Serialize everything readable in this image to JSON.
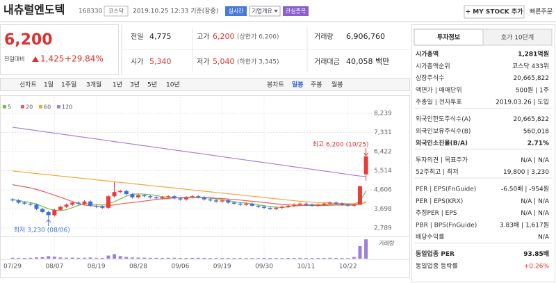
{
  "header": {
    "name": "내츄럴엔도텍",
    "code": "168330",
    "market": "코스닥",
    "timestamp": "2019.10.25 12:33 기준(장중)",
    "buttons": [
      "실시간",
      "기업개요",
      "관심종목"
    ],
    "my_stock": "+ MY STOCK 추가",
    "quick_order": "빠른주문"
  },
  "price": {
    "current": "6,200",
    "change_label": "전일대비",
    "change": "1,425",
    "change_pct": "+29.84%"
  },
  "summary": {
    "rows": [
      [
        {
          "label": "전일",
          "value": "4,775"
        },
        {
          "label": "고가",
          "value": "6,200",
          "note": "(상한가 6,200)"
        },
        {
          "label": "거래량",
          "value": "6,906,760"
        }
      ],
      [
        {
          "label": "시가",
          "value": "5,340"
        },
        {
          "label": "저가",
          "value": "5,040",
          "note": "(하한가 3,345)"
        },
        {
          "label": "거래대금",
          "value": "40,058 백만"
        }
      ]
    ]
  },
  "periods": {
    "line_label": "선차트",
    "line": [
      "1일",
      "1주일",
      "3개월",
      "1년",
      "3년",
      "5년",
      "10년"
    ],
    "candle_label": "봉차트",
    "candle": [
      "일봉",
      "주봉",
      "월봉"
    ]
  },
  "chart_data": {
    "type": "candlestick",
    "categories": [
      "07/29",
      null,
      null,
      null,
      null,
      null,
      null,
      "08/07",
      null,
      null,
      null,
      null,
      null,
      null,
      "08/19",
      null,
      null,
      null,
      null,
      null,
      null,
      "08/28",
      null,
      null,
      null,
      null,
      null,
      null,
      "09/06",
      null,
      null,
      null,
      null,
      null,
      null,
      "09/19",
      null,
      null,
      null,
      null,
      null,
      null,
      "09/30",
      null,
      null,
      null,
      null,
      null,
      null,
      "10/11",
      null,
      null,
      null,
      null,
      null,
      null,
      "10/22",
      null,
      null,
      null
    ],
    "open": [
      4150,
      4100,
      4000,
      3950,
      3900,
      3700,
      3550,
      3400,
      3650,
      3800,
      3900,
      4000,
      3950,
      4050,
      3850,
      3800,
      3750,
      4300,
      4500,
      4550,
      4400,
      4250,
      4350,
      4300,
      4250,
      4200,
      4250,
      4300,
      4200,
      4150,
      4250,
      4300,
      4250,
      4150,
      4100,
      4050,
      4100,
      4000,
      3950,
      3900,
      3950,
      3850,
      3800,
      3750,
      3700,
      3750,
      3800,
      3850,
      3900,
      3950,
      3900,
      3850,
      3900,
      3950,
      4000,
      3950,
      3900,
      3850,
      3900,
      5340
    ],
    "high": [
      4210,
      4160,
      4060,
      4010,
      3960,
      3760,
      3610,
      3710,
      3860,
      3960,
      4060,
      4060,
      4110,
      4110,
      3910,
      3860,
      4360,
      4970,
      4610,
      4610,
      4460,
      4410,
      4410,
      4360,
      4310,
      4310,
      4360,
      4360,
      4260,
      4310,
      4360,
      4360,
      4310,
      4210,
      4160,
      4160,
      4160,
      4060,
      4010,
      4010,
      4010,
      3910,
      3860,
      3810,
      3810,
      3860,
      3910,
      3960,
      4010,
      4010,
      3960,
      3960,
      4010,
      4060,
      4060,
      4010,
      3960,
      3960,
      4800,
      6200
    ],
    "low": [
      4040,
      3940,
      3890,
      3840,
      3640,
      3490,
      3230,
      3340,
      3590,
      3740,
      3840,
      3890,
      3890,
      3790,
      3740,
      3690,
      3690,
      4240,
      4440,
      4340,
      4190,
      4190,
      4240,
      4190,
      4140,
      4140,
      4190,
      4140,
      4090,
      4090,
      4190,
      4190,
      4090,
      4040,
      3990,
      3990,
      3940,
      3890,
      3840,
      3840,
      3790,
      3740,
      3690,
      3640,
      3640,
      3690,
      3740,
      3790,
      3840,
      3840,
      3790,
      3790,
      3840,
      3890,
      3890,
      3840,
      3790,
      3790,
      3880,
      5040
    ],
    "close": [
      4100,
      4000,
      3950,
      3900,
      3700,
      3550,
      3400,
      3650,
      3800,
      3900,
      4000,
      3950,
      4050,
      3850,
      3800,
      3750,
      4300,
      4500,
      4550,
      4400,
      4250,
      4350,
      4300,
      4250,
      4200,
      4250,
      4300,
      4200,
      4150,
      4250,
      4300,
      4250,
      4150,
      4100,
      4050,
      4100,
      4000,
      3950,
      3900,
      3950,
      3850,
      3800,
      3750,
      3700,
      3750,
      3800,
      3850,
      3900,
      3950,
      3900,
      3850,
      3900,
      3950,
      4000,
      3950,
      3900,
      3850,
      3900,
      4775,
      6200
    ],
    "series": [
      {
        "name": "5",
        "color": "#6cbf4a",
        "values": [
          4150,
          4100,
          4050,
          4000,
          3930,
          3820,
          3700,
          3640,
          3620,
          3660,
          3760,
          3860,
          3940,
          3930,
          3900,
          3880,
          3950,
          4040,
          4180,
          4300,
          4400,
          4410,
          4400,
          4370,
          4340,
          4270,
          4260,
          4240,
          4220,
          4220,
          4240,
          4230,
          4230,
          4210,
          4170,
          4130,
          4100,
          4040,
          4000,
          3970,
          3930,
          3890,
          3850,
          3810,
          3780,
          3770,
          3790,
          3820,
          3860,
          3880,
          3890,
          3890,
          3890,
          3910,
          3930,
          3920,
          3910,
          3900,
          4080,
          4540
        ]
      },
      {
        "name": "20",
        "color": "#ee5a5a",
        "values": [
          4850,
          4800,
          4750,
          4700,
          4620,
          4540,
          4450,
          4350,
          4250,
          4150,
          4050,
          3950,
          3880,
          3850,
          3830,
          3820,
          3850,
          3890,
          3930,
          3970,
          4000,
          4030,
          4070,
          4110,
          4150,
          4180,
          4200,
          4220,
          4230,
          4240,
          4250,
          4250,
          4240,
          4230,
          4210,
          4190,
          4170,
          4150,
          4120,
          4090,
          4060,
          4030,
          4000,
          3970,
          3940,
          3910,
          3890,
          3880,
          3870,
          3860,
          3860,
          3860,
          3860,
          3870,
          3880,
          3880,
          3880,
          3880,
          3920,
          4030
        ]
      },
      {
        "name": "60",
        "color": "#f5a53a",
        "values": [
          5500,
          5470,
          5440,
          5410,
          5380,
          5350,
          5320,
          5290,
          5260,
          5230,
          5200,
          5170,
          5140,
          5110,
          5080,
          5050,
          5020,
          4990,
          4960,
          4930,
          4900,
          4870,
          4840,
          4810,
          4780,
          4750,
          4720,
          4690,
          4660,
          4630,
          4600,
          4570,
          4540,
          4510,
          4480,
          4450,
          4420,
          4390,
          4360,
          4330,
          4300,
          4270,
          4240,
          4210,
          4180,
          4150,
          4120,
          4090,
          4060,
          4040,
          4020,
          4000,
          3990,
          3980,
          3970,
          3960,
          3950,
          3950,
          3960,
          3990
        ]
      },
      {
        "name": "120",
        "color": "#a57fe0",
        "values": [
          7580,
          7540,
          7500,
          7460,
          7420,
          7380,
          7340,
          7300,
          7260,
          7220,
          7180,
          7140,
          7100,
          7060,
          7020,
          6980,
          6940,
          6900,
          6860,
          6820,
          6780,
          6740,
          6700,
          6660,
          6620,
          6580,
          6540,
          6500,
          6460,
          6420,
          6380,
          6340,
          6300,
          6260,
          6220,
          6180,
          6140,
          6100,
          6060,
          6020,
          5980,
          5940,
          5900,
          5860,
          5820,
          5780,
          5740,
          5700,
          5660,
          5620,
          5580,
          5540,
          5500,
          5460,
          5420,
          5380,
          5340,
          5300,
          5260,
          5240
        ]
      }
    ],
    "volume": {
      "name": "거래량",
      "color": "#9d7fd8",
      "ylim": [
        0,
        7200000
      ],
      "values": [
        320000,
        280000,
        260000,
        300000,
        450000,
        520000,
        900000,
        700000,
        420000,
        350000,
        380000,
        300000,
        330000,
        410000,
        280000,
        260000,
        1100000,
        1600000,
        900000,
        600000,
        420000,
        380000,
        350000,
        300000,
        280000,
        260000,
        300000,
        320000,
        250000,
        240000,
        280000,
        300000,
        260000,
        230000,
        220000,
        250000,
        240000,
        220000,
        210000,
        230000,
        220000,
        200000,
        260000,
        240000,
        220000,
        230000,
        250000,
        260000,
        280000,
        240000,
        230000,
        250000,
        260000,
        300000,
        240000,
        230000,
        220000,
        600000,
        4500000,
        6906760
      ]
    },
    "ylim": [
      2490,
      8670
    ],
    "yticks": [
      {
        "value": 2789,
        "label": "2,789"
      },
      {
        "value": 3698,
        "label": "3,698"
      },
      {
        "value": 4606,
        "label": "4,606"
      },
      {
        "value": 5514,
        "label": "5,514"
      },
      {
        "value": 6422,
        "label": "6,422"
      },
      {
        "value": 7331,
        "label": "7,331"
      },
      {
        "value": 8239,
        "label": "8,239"
      }
    ],
    "grid": true,
    "up_color": "#ea3a3a",
    "down_color": "#3d6fd6",
    "annotations": {
      "high": "최고 6,200 (10/25)",
      "low": "최저 3,230 (08/06)"
    }
  },
  "right_panel": {
    "tabs": [
      "투자정보",
      "호가 10단계"
    ],
    "groups": [
      [
        {
          "label": "시가총액",
          "value": "1,281억원"
        },
        {
          "label": "시가총액순위",
          "value": "코스닥 433위"
        },
        {
          "label": "상장주식수",
          "value": "20,665,822"
        },
        {
          "label": "액면가 | 매매단위",
          "value": "500원 | 1주"
        },
        {
          "label": "주총일 | 전자투표",
          "value": "2019.03.26 | 도입"
        }
      ],
      [
        {
          "label": "외국인한도주식수(A)",
          "value": "20,665,822"
        },
        {
          "label": "외국인보유주식수(B)",
          "value": "560,018"
        },
        {
          "label": "외국인소진율(B/A)",
          "value": "2.71%"
        }
      ],
      [
        {
          "label": "투자의견 | 목표주가",
          "value": "N/A | N/A"
        },
        {
          "label": "52주최고 | 최저",
          "value": "19,800 | 3,230"
        }
      ],
      [
        {
          "label": "PER | EPS(FnGuide)",
          "value": "-6.50배 | -954원"
        },
        {
          "label": "PER | EPS(KRX)",
          "value": "N/A | N/A"
        },
        {
          "label": "추정PER | EPS",
          "value": "N/A | N/A"
        },
        {
          "label": "PBR | BPS(FnGuide)",
          "value": "3.83배 | 1,617원"
        },
        {
          "label": "배당수익률",
          "value": "N/A"
        }
      ],
      [
        {
          "label": "동일업종 PER",
          "value": "93.85배"
        },
        {
          "label": "동일업종 등락률",
          "value": "+0.26%"
        }
      ]
    ]
  }
}
